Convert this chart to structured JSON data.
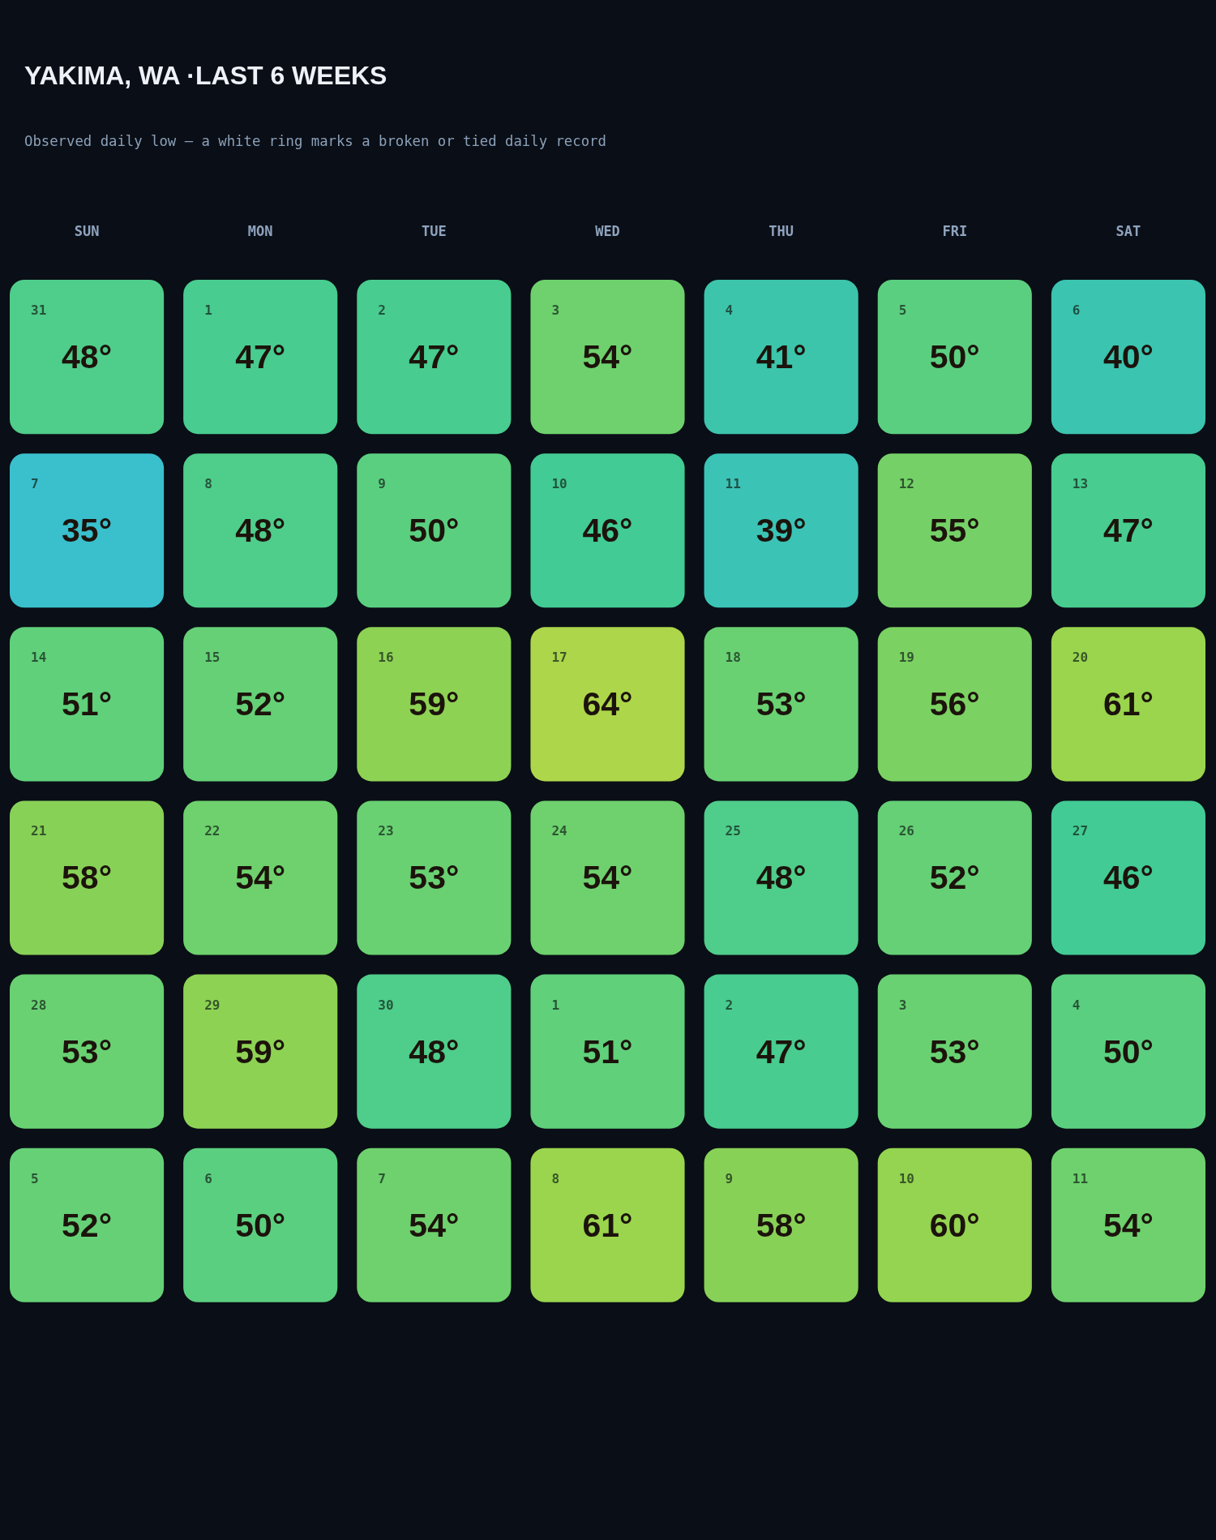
{
  "chart_data": {
    "type": "heatmap",
    "title": "YAKIMA, WA ·LAST 6 WEEKS",
    "subtitle": "Observed daily low — a white ring marks a broken or tied daily record",
    "categories": [
      "SUN",
      "MON",
      "TUE",
      "WED",
      "THU",
      "FRI",
      "SAT"
    ],
    "y_categories": [
      null,
      null,
      null,
      null,
      null,
      null
    ],
    "cells": [
      [
        48,
        47,
        47,
        54,
        41,
        50,
        40
      ],
      [
        35,
        48,
        50,
        46,
        39,
        55,
        47
      ],
      [
        51,
        52,
        59,
        64,
        53,
        56,
        61
      ],
      [
        58,
        54,
        53,
        54,
        48,
        52,
        46
      ],
      [
        53,
        59,
        48,
        51,
        47,
        53,
        50
      ],
      [
        52,
        50,
        54,
        61,
        58,
        60,
        54
      ]
    ],
    "cell_labels": [
      [
        "48°",
        "47°",
        "47°",
        "54°",
        "41°",
        "50°",
        "40°"
      ],
      [
        "35°",
        "48°",
        "50°",
        "46°",
        "39°",
        "55°",
        "47°"
      ],
      [
        "51°",
        "52°",
        "59°",
        "64°",
        "53°",
        "56°",
        "61°"
      ],
      [
        "58°",
        "54°",
        "53°",
        "54°",
        "48°",
        "52°",
        "46°"
      ],
      [
        "53°",
        "59°",
        "48°",
        "51°",
        "47°",
        "53°",
        "50°"
      ],
      [
        "52°",
        "50°",
        "54°",
        "61°",
        "58°",
        "60°",
        "54°"
      ]
    ],
    "annotations": [
      "31",
      "1",
      "2",
      "3",
      "4",
      "5",
      "6",
      "7",
      "8",
      "9",
      "10",
      "11",
      "12",
      "13",
      "14",
      "15",
      "16",
      "17",
      "18",
      "19",
      "20",
      "21",
      "22",
      "23",
      "24",
      "25",
      "26",
      "27",
      "28",
      "29",
      "30",
      "1",
      "2",
      "3",
      "4",
      "5",
      "6",
      "7",
      "8",
      "9",
      "10",
      "11"
    ]
  }
}
